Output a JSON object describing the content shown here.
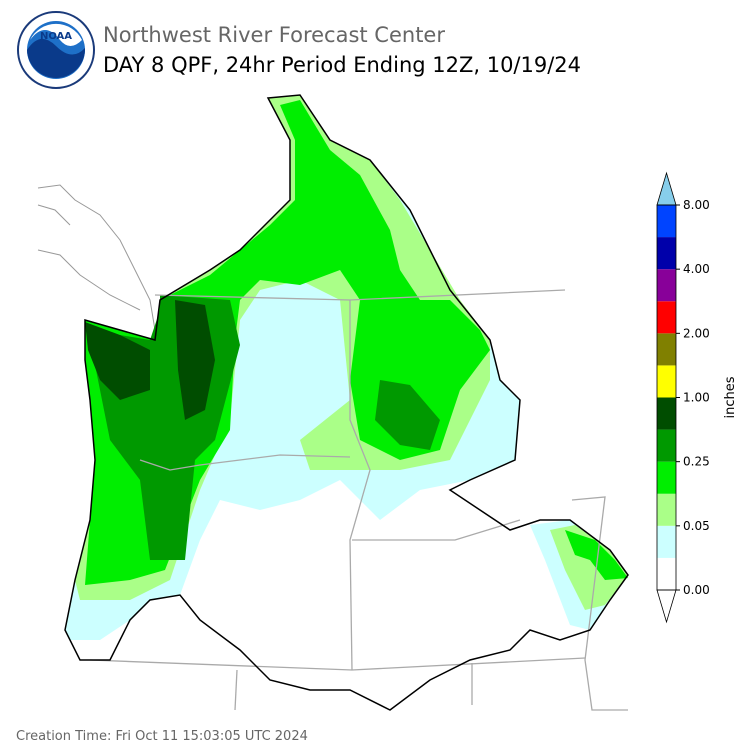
{
  "header": {
    "logo_text": "NOAA",
    "title": "Northwest River Forecast Center",
    "subtitle": "DAY 8 QPF, 24hr Period Ending 12Z, 10/19/24"
  },
  "colorbar": {
    "label": "inches",
    "colors": [
      "#ffffff",
      "#ccffff",
      "#aaff88",
      "#00ee00",
      "#009900",
      "#004d00",
      "#ffff00",
      "#808000",
      "#ff0000",
      "#880099",
      "#0000aa",
      "#0044ff"
    ],
    "under_color": "#ffffff",
    "over_color": "#87ceeb",
    "ticks": [
      {
        "value": 0,
        "label": "0.00"
      },
      {
        "value": 0.05,
        "label": "0.05"
      },
      {
        "value": 0.25,
        "label": "0.25"
      },
      {
        "value": 1,
        "label": "1.00"
      },
      {
        "value": 2,
        "label": "2.00"
      },
      {
        "value": 4,
        "label": "4.00"
      },
      {
        "value": 8,
        "label": "8.00"
      }
    ]
  },
  "footer": {
    "creation_time": "Creation Time: Fri Oct 11 15:03:05 UTC 2024"
  }
}
